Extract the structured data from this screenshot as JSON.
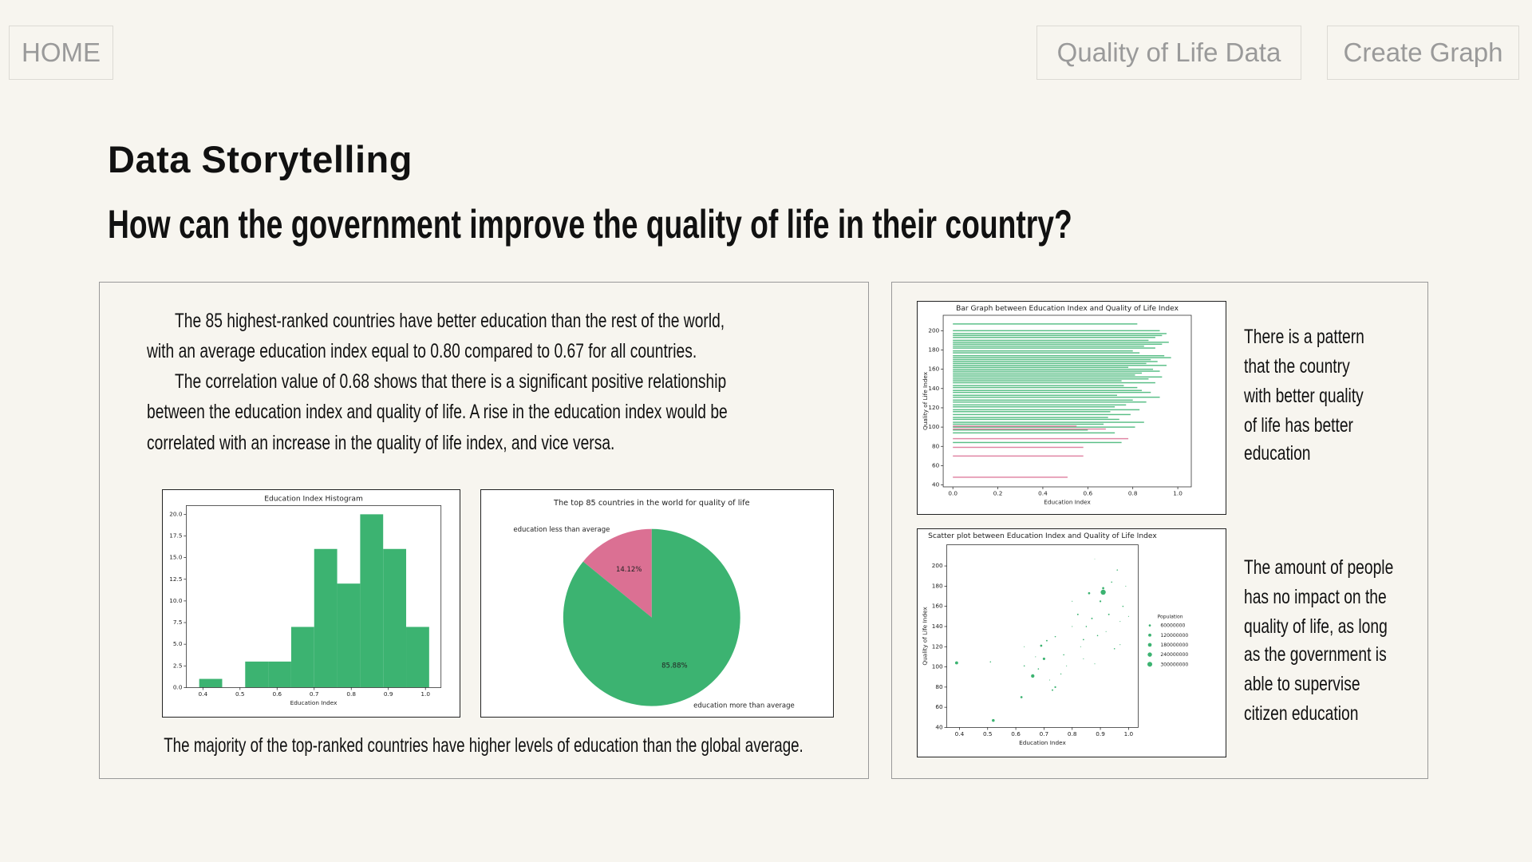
{
  "nav": {
    "home": "HOME",
    "links": [
      "Quality of Life Data",
      "Create Graph"
    ]
  },
  "header": {
    "title": "Data Storytelling",
    "subtitle": "How can the government improve the quality of life in their country?"
  },
  "story": {
    "paragraphs": [
      [
        "The 85 highest-ranked countries have better education than the rest of the world,",
        "with an average education index equal to 0.80 compared to 0.67 for all countries."
      ],
      [
        "The correlation value of 0.68 shows that there is a significant positive relationship",
        "between the education index and quality of life. A rise in the education index would be",
        "correlated with an increase in the quality of life index, and vice versa."
      ]
    ],
    "caption": "The majority of the top-ranked countries have higher levels of education than the global average."
  },
  "insights": [
    [
      "There is a pattern",
      "that the country",
      "with better quality",
      "of life has better",
      "education"
    ],
    [
      "The amount of people",
      "has no impact on the",
      "quality of life, as long",
      "as the government is",
      "able to supervise",
      "citizen education"
    ]
  ],
  "chart_data": [
    {
      "type": "histogram",
      "title": "Education Index Histogram",
      "x_label": "Education Index",
      "bins": [
        0.39,
        0.452,
        0.514,
        0.576,
        0.638,
        0.7,
        0.762,
        0.824,
        0.886,
        0.948,
        1.01
      ],
      "values": [
        1,
        0,
        3,
        3,
        7,
        16,
        12,
        20,
        16,
        7
      ],
      "color": "#3cb371",
      "xlim": [
        0.355,
        1.042
      ],
      "ylim": [
        0,
        21
      ],
      "xticks": [
        0.4,
        0.5,
        0.6,
        0.7,
        0.8,
        0.9,
        {
          "value": 1,
          "label": "1.0"
        }
      ],
      "yticks": [
        {
          "value": 0,
          "label": "0.0"
        },
        2.5,
        {
          "value": 5,
          "label": "5.0"
        },
        7.5,
        {
          "value": 10,
          "label": "10.0"
        },
        12.5,
        {
          "value": 15,
          "label": "15.0"
        },
        17.5,
        {
          "value": 20,
          "label": "20.0"
        }
      ]
    },
    {
      "type": "pie",
      "title": "The top 85 countries in the world for quality of life",
      "labels": [
        "education less than average",
        "education more than average"
      ],
      "values": [
        14.12,
        85.88
      ],
      "value_labels": [
        "14.12%",
        "85.88%"
      ],
      "colors": [
        "#db7093",
        "#3cb371"
      ],
      "start_angle": 90
    },
    {
      "type": "bar",
      "orientation": "horizontal",
      "title": "Bar Graph between Education Index and Quality of Life Index",
      "x_label": "Education Index",
      "y_label": "Quality of Life Index",
      "xlim": [
        -0.043,
        1.06
      ],
      "ylim": [
        38,
        216
      ],
      "xticks": [
        {
          "value": 0,
          "label": "0.0"
        },
        0.2,
        0.4,
        0.6,
        0.8,
        {
          "value": 1,
          "label": "1.0"
        }
      ],
      "yticks": [
        40,
        60,
        80,
        100,
        120,
        140,
        160,
        180,
        200
      ],
      "series": [
        {
          "color": "#3cb371",
          "y": [
            207,
            200,
            197,
            195,
            193,
            190,
            188,
            186,
            184,
            182,
            179,
            177,
            174,
            172,
            170,
            168,
            166,
            164,
            162,
            160,
            158,
            156,
            154,
            152,
            150,
            148,
            146,
            143,
            141,
            138,
            136,
            133,
            131,
            128,
            126,
            123,
            121,
            118,
            116,
            113,
            110,
            108,
            105,
            103,
            100,
            97,
            94,
            84
          ],
          "values": [
            0.82,
            0.92,
            0.95,
            0.93,
            0.9,
            0.87,
            0.96,
            0.93,
            0.85,
            0.9,
            0.8,
            0.83,
            0.94,
            0.97,
            0.88,
            0.91,
            0.86,
            0.95,
            0.78,
            0.89,
            0.92,
            0.84,
            0.81,
            0.93,
            0.87,
            0.75,
            0.9,
            0.76,
            0.82,
            0.84,
            0.88,
            0.73,
            0.92,
            0.8,
            0.86,
            0.77,
            0.72,
            0.83,
            0.7,
            0.79,
            0.69,
            0.74,
            0.85,
            0.67,
            0.81,
            0.6,
            0.72,
            0.75
          ]
        },
        {
          "color": "#db7093",
          "y": [
            101,
            98,
            88,
            79,
            70,
            48
          ],
          "values": [
            0.55,
            0.68,
            0.78,
            0.58,
            0.58,
            0.51
          ]
        }
      ]
    },
    {
      "type": "scatter",
      "title": "Scatter plot between Education Index and Quality of Life Index",
      "x_label": "Education Index",
      "y_label": "Quality of Life Index",
      "xlim": [
        0.355,
        1.034
      ],
      "ylim": [
        40,
        221
      ],
      "xticks": [
        0.4,
        0.5,
        0.6,
        0.7,
        0.8,
        0.9,
        {
          "value": 1,
          "label": "1.0"
        }
      ],
      "yticks": [
        40,
        60,
        80,
        100,
        120,
        140,
        160,
        180,
        200
      ],
      "series": [
        {
          "color": "#3cb371",
          "x": [
            0.39,
            0.52,
            0.51,
            0.62,
            0.63,
            0.66,
            0.68,
            0.69,
            0.7,
            0.71,
            0.72,
            0.73,
            0.74,
            0.74,
            0.63,
            0.67,
            0.77,
            0.78,
            0.8,
            0.82,
            0.83,
            0.84,
            0.85,
            0.86,
            0.87,
            0.88,
            0.89,
            0.9,
            0.91,
            0.92,
            0.93,
            0.94,
            0.91,
            0.96,
            0.97,
            0.98,
            0.99,
            1.0,
            0.88,
            0.95,
            0.8,
            0.76,
            0.84,
            0.97
          ],
          "values": [
            104,
            47,
            105,
            70,
            101,
            91,
            98,
            121,
            108,
            126,
            87,
            77,
            80,
            130,
            120,
            110,
            112,
            101,
            165,
            152,
            120,
            108,
            140,
            173,
            148,
            103,
            131,
            165,
            178,
            135,
            152,
            184,
            174,
            196,
            145,
            160,
            180,
            150,
            207,
            118,
            140,
            93,
            127,
            122
          ],
          "sizes": [
            120000000,
            100000000,
            20000000,
            60000000,
            20000000,
            150000000,
            20000000,
            60000000,
            80000000,
            30000000,
            10000000,
            30000000,
            40000000,
            20000000,
            10000000,
            10000000,
            20000000,
            10000000,
            10000000,
            30000000,
            10000000,
            10000000,
            20000000,
            60000000,
            30000000,
            10000000,
            20000000,
            40000000,
            60000000,
            10000000,
            30000000,
            20000000,
            330000000,
            20000000,
            10000000,
            20000000,
            10000000,
            10000000,
            5000000,
            20000000,
            10000000,
            15000000,
            25000000,
            10000000
          ]
        }
      ],
      "size_legend": {
        "title": "Population",
        "values": [
          60000000,
          120000000,
          180000000,
          240000000,
          300000000
        ]
      }
    }
  ]
}
